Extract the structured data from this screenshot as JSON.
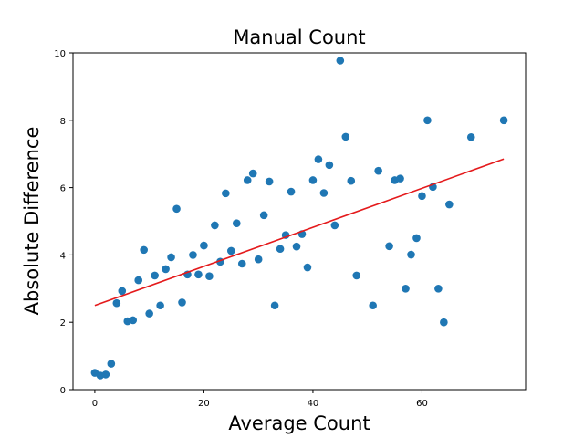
{
  "chart_data": {
    "type": "scatter",
    "title": "Manual Count",
    "xlabel": "Average Count",
    "ylabel": "Absolute Difference",
    "xlim": [
      -4,
      79
    ],
    "ylim": [
      0,
      10
    ],
    "xticks": [
      0,
      20,
      40,
      60
    ],
    "yticks": [
      0,
      2,
      4,
      6,
      8,
      10
    ],
    "xtick_labels": [
      "0",
      "20",
      "40",
      "60"
    ],
    "ytick_labels": [
      "0",
      "2",
      "4",
      "6",
      "8",
      "10"
    ],
    "grid": false,
    "point_color": "#1f77b4",
    "line_color": "#e41a1c",
    "series": [
      {
        "points": [
          [
            0,
            0.5
          ],
          [
            1,
            0.42
          ],
          [
            2,
            0.45
          ],
          [
            3,
            0.77
          ],
          [
            4,
            2.57
          ],
          [
            5,
            2.93
          ],
          [
            6,
            2.03
          ],
          [
            7,
            2.06
          ],
          [
            8,
            3.25
          ],
          [
            9,
            4.15
          ],
          [
            10,
            2.26
          ],
          [
            11,
            3.39
          ],
          [
            12,
            2.5
          ],
          [
            13,
            3.58
          ],
          [
            14,
            3.93
          ],
          [
            15,
            5.37
          ],
          [
            16,
            2.59
          ],
          [
            17,
            3.42
          ],
          [
            18,
            4.0
          ],
          [
            19,
            3.42
          ],
          [
            20,
            4.28
          ],
          [
            21,
            3.37
          ],
          [
            22,
            4.88
          ],
          [
            23,
            3.8
          ],
          [
            24,
            5.83
          ],
          [
            25,
            4.12
          ],
          [
            26,
            4.94
          ],
          [
            27,
            3.74
          ],
          [
            28,
            6.22
          ],
          [
            29,
            6.42
          ],
          [
            30,
            3.87
          ],
          [
            31,
            5.18
          ],
          [
            32,
            6.18
          ],
          [
            33,
            2.5
          ],
          [
            34,
            4.18
          ],
          [
            35,
            4.59
          ],
          [
            36,
            5.88
          ],
          [
            37,
            4.25
          ],
          [
            38,
            4.62
          ],
          [
            39,
            3.63
          ],
          [
            40,
            6.22
          ],
          [
            41,
            6.84
          ],
          [
            42,
            5.84
          ],
          [
            43,
            6.67
          ],
          [
            44,
            4.88
          ],
          [
            45,
            9.77
          ],
          [
            46,
            7.51
          ],
          [
            47,
            6.2
          ],
          [
            48,
            3.39
          ],
          [
            51,
            2.5
          ],
          [
            52,
            6.5
          ],
          [
            54,
            4.26
          ],
          [
            55,
            6.22
          ],
          [
            56,
            6.27
          ],
          [
            57,
            3.0
          ],
          [
            58,
            4.01
          ],
          [
            59,
            4.5
          ],
          [
            60,
            5.75
          ],
          [
            61,
            8.0
          ],
          [
            62,
            6.02
          ],
          [
            63,
            3.0
          ],
          [
            64,
            2.0
          ],
          [
            65,
            5.5
          ],
          [
            69,
            7.5
          ],
          [
            75,
            8.0
          ]
        ]
      }
    ],
    "trend_line": {
      "x": [
        0,
        75
      ],
      "y": [
        2.5,
        6.85
      ]
    }
  }
}
